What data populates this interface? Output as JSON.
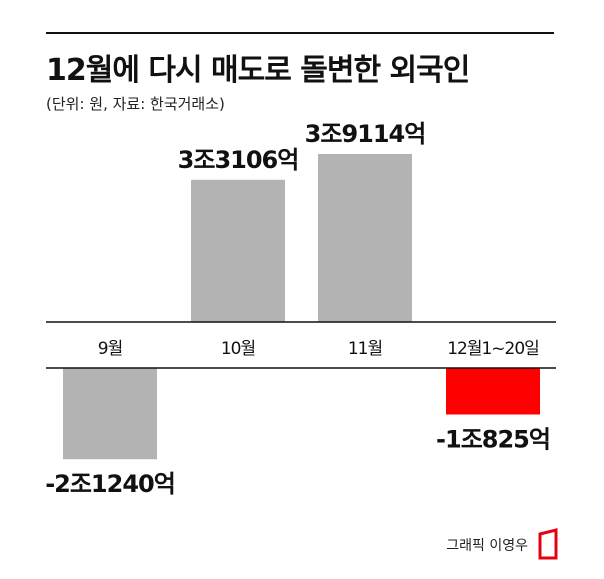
{
  "header": {
    "title": "12월에 다시 매도로 돌변한 외국인",
    "subtitle": "(단위: 원, 자료: 한국거래소)"
  },
  "credit": {
    "text": "그래픽 이영우",
    "logo_color": "#e60012"
  },
  "chart_data": {
    "type": "bar",
    "categories": [
      "9월",
      "10월",
      "11월",
      "12월1~20일"
    ],
    "values": [
      -21240,
      33106,
      39114,
      -10825
    ],
    "value_unit_note": "억원",
    "data_labels": [
      "-2조1240억",
      "3조3106억",
      "3조9114억",
      "-1조825억"
    ],
    "bar_colors": [
      "#b3b3b3",
      "#b3b3b3",
      "#b3b3b3",
      "#ff0000"
    ],
    "xlabel": "",
    "ylabel": "",
    "grid": false,
    "legend": "none"
  }
}
